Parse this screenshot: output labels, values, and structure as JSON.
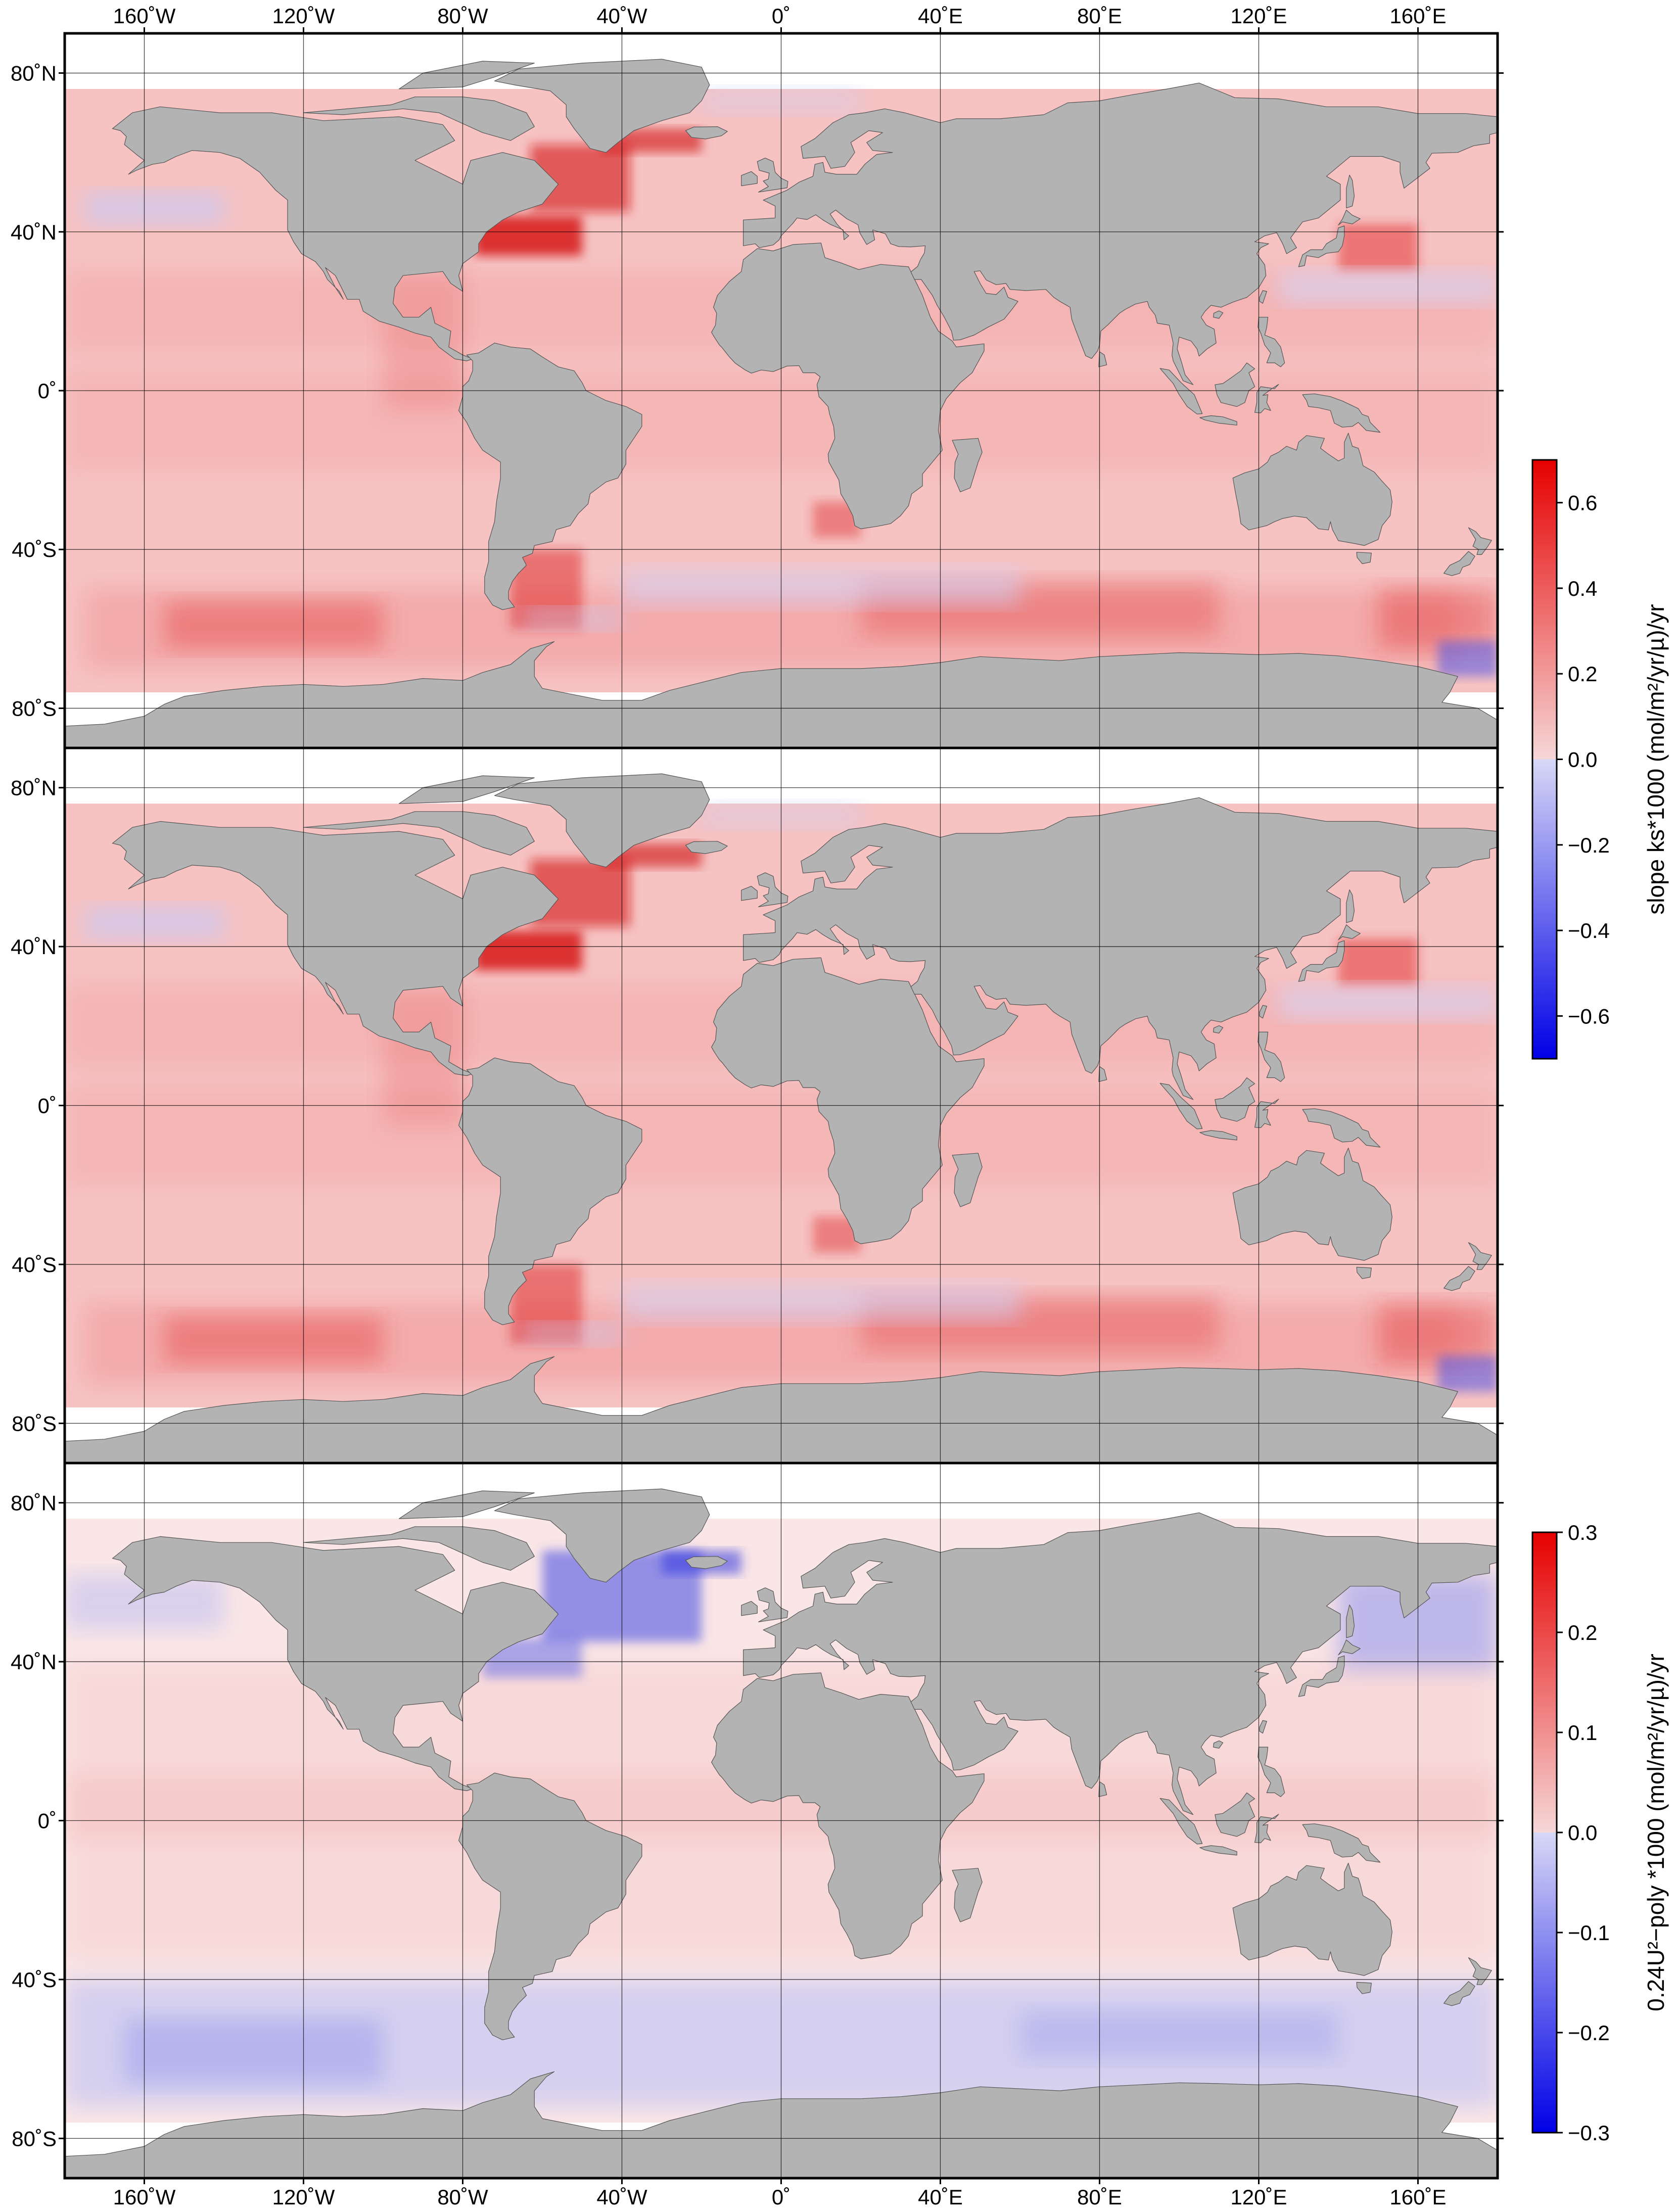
{
  "maps": {
    "lon_ticks": [
      "160˚W",
      "120˚W",
      "80˚W",
      "40˚W",
      "0˚",
      "40˚E",
      "80˚E",
      "120˚E",
      "160˚E"
    ],
    "lat_ticks": [
      "80˚N",
      "40˚N",
      "0˚",
      "40˚S",
      "80˚S"
    ],
    "lon_values": [
      -160,
      -120,
      -80,
      -40,
      0,
      40,
      80,
      120,
      160
    ],
    "lat_values": [
      80,
      40,
      0,
      -40,
      -80
    ],
    "lon_range": [
      -180,
      180
    ],
    "lat_range": [
      -90,
      90
    ],
    "grid": true,
    "colors": {
      "land": "#b3b3b3",
      "ocean_no_data": "#ffffff",
      "positive": "#e60000",
      "negative": "#0000e6",
      "neutral": "#ffffff"
    },
    "panels": [
      {
        "id": "top",
        "field": "slope ks*1000",
        "colorbar_ref": "upper",
        "dominant_sign": "positive"
      },
      {
        "id": "middle",
        "field": "slope ks*1000",
        "colorbar_ref": "upper",
        "dominant_sign": "positive"
      },
      {
        "id": "bottom",
        "field": "0.24U²-poly *1000",
        "colorbar_ref": "lower",
        "dominant_sign": "mixed"
      }
    ]
  },
  "colorbars": {
    "upper": {
      "label": "slope ks*1000 (mol/m²/yr/µ)/yr",
      "range": [
        -0.7,
        0.7
      ],
      "ticks": [
        "0.6",
        "0.4",
        "0.2",
        "0.0",
        "−0.2",
        "−0.4",
        "−0.6"
      ],
      "tick_values": [
        0.6,
        0.4,
        0.2,
        0.0,
        -0.2,
        -0.4,
        -0.6
      ]
    },
    "lower": {
      "label": "0.24U²−poly *1000 (mol/m²/yr/µ)/yr",
      "range": [
        -0.3,
        0.3
      ],
      "ticks": [
        "0.3",
        "0.2",
        "0.1",
        "0.0",
        "−0.1",
        "−0.2",
        "−0.3"
      ],
      "tick_values": [
        0.3,
        0.2,
        0.1,
        0.0,
        -0.1,
        -0.2,
        -0.3
      ]
    }
  }
}
